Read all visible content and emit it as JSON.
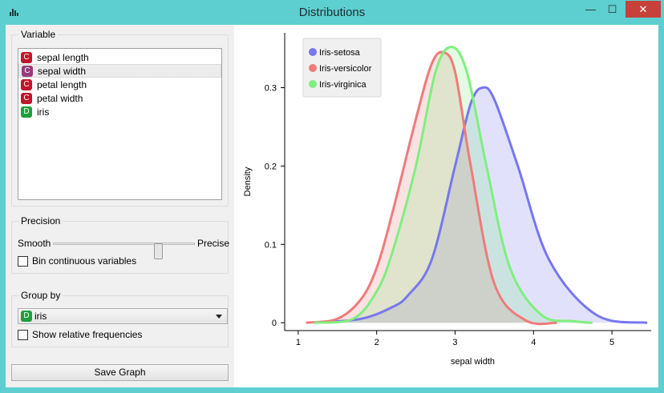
{
  "window": {
    "title": "Distributions",
    "minimize_label": "—",
    "maximize_label": "☐",
    "close_label": "✕"
  },
  "variable": {
    "legend": "Variable",
    "items": [
      {
        "badge": "C",
        "label": "sepal length"
      },
      {
        "badge": "C",
        "label": "sepal width"
      },
      {
        "badge": "C",
        "label": "petal length"
      },
      {
        "badge": "C",
        "label": "petal width"
      },
      {
        "badge": "D",
        "label": "iris"
      }
    ],
    "selected": "sepal width"
  },
  "precision": {
    "legend": "Precision",
    "left_label": "Smooth",
    "right_label": "Precise",
    "slider_value": 0.5,
    "bin_label": "Bin continuous variables",
    "bin_checked": false
  },
  "group_by": {
    "legend": "Group by",
    "selected_badge": "D",
    "selected": "iris",
    "relative_label": "Show relative frequencies",
    "relative_checked": false
  },
  "save_label": "Save Graph",
  "chart_data": {
    "type": "area",
    "xlabel": "sepal width",
    "ylabel": "Density",
    "xlim": [
      0.95,
      5.5
    ],
    "ylim": [
      -0.01,
      0.37
    ],
    "xticks": [
      1,
      2,
      3,
      4,
      5
    ],
    "yticks": [
      0,
      0.1,
      0.2,
      0.3
    ],
    "legend_position": "top-left",
    "series": [
      {
        "name": "Iris-setosa",
        "color": "#7777ee",
        "x": [
          1.2,
          1.8,
          2.2,
          2.4,
          2.7,
          3.0,
          3.2,
          3.35,
          3.5,
          3.8,
          4.2,
          4.8,
          5.45
        ],
        "y": [
          0.0,
          0.005,
          0.02,
          0.035,
          0.08,
          0.2,
          0.28,
          0.3,
          0.285,
          0.2,
          0.08,
          0.01,
          0.0
        ]
      },
      {
        "name": "Iris-versicolor",
        "color": "#ef7b7b",
        "x": [
          1.1,
          1.5,
          1.8,
          2.0,
          2.2,
          2.5,
          2.7,
          2.85,
          3.0,
          3.2,
          3.5,
          3.9,
          4.3
        ],
        "y": [
          0.0,
          0.005,
          0.03,
          0.07,
          0.14,
          0.26,
          0.33,
          0.345,
          0.32,
          0.2,
          0.05,
          0.003,
          0.0
        ]
      },
      {
        "name": "Iris-virginica",
        "color": "#7fef7f",
        "x": [
          1.2,
          1.7,
          2.0,
          2.2,
          2.5,
          2.75,
          2.95,
          3.15,
          3.4,
          3.7,
          4.1,
          4.5,
          4.75
        ],
        "y": [
          0.0,
          0.005,
          0.04,
          0.09,
          0.2,
          0.32,
          0.352,
          0.32,
          0.2,
          0.07,
          0.01,
          0.002,
          0.0
        ]
      }
    ]
  }
}
